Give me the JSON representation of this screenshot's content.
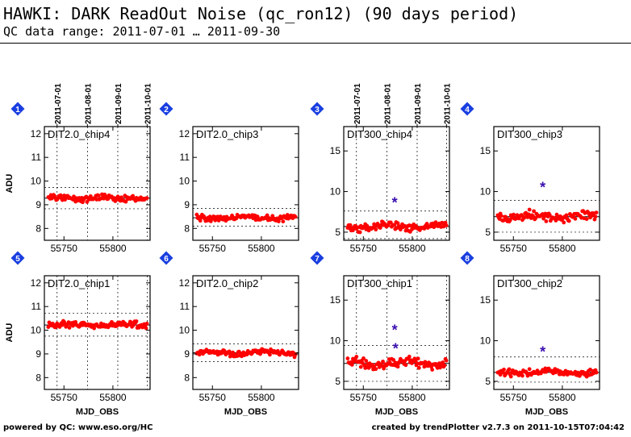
{
  "header": {
    "title": "HAWKI: DARK ReadOut Noise (qc_ron12) (90 days period)",
    "subtitle": "QC data range: 2011-07-01 … 2011-09-30"
  },
  "footer": {
    "left": "powered by QC: www.eso.org/HC",
    "right": "created by trendPlotter v2.7.3 on 2011-10-15T07:04:42"
  },
  "colors": {
    "points": "#ff0000",
    "outliers": "#3a0fb0",
    "badges": "#1a3fe0",
    "grid": "#000000",
    "limit_lines": "#000000"
  },
  "chart_data": [
    {
      "type": "scatter",
      "id": 1,
      "panel_label": "DIT2.0_chip4",
      "ylabel": "ADU",
      "xlabel": "",
      "xlim": [
        55730,
        55838
      ],
      "ylim": [
        7.5,
        12.3
      ],
      "yticks": [
        8,
        9,
        10,
        11,
        12
      ],
      "xticks": [
        55750,
        55800
      ],
      "date_ticks": [
        "2011-07-01",
        "2011-08-01",
        "2011-09-01",
        "2011-10-01"
      ],
      "mean": 9.28,
      "limits": [
        8.83,
        9.73
      ],
      "series": [
        {
          "y_center": 9.28,
          "y_spread": 0.09
        }
      ],
      "outliers": []
    },
    {
      "type": "scatter",
      "id": 2,
      "panel_label": "DIT2.0_chip3",
      "ylabel": "",
      "xlabel": "",
      "xlim": [
        55730,
        55838
      ],
      "ylim": [
        7.5,
        12.3
      ],
      "yticks": [
        8,
        9,
        10,
        11,
        12
      ],
      "xticks": [
        55750,
        55800
      ],
      "date_ticks": [],
      "mean": 8.45,
      "limits": [
        8.1,
        8.85
      ],
      "series": [
        {
          "y_center": 8.45,
          "y_spread": 0.09
        }
      ],
      "outliers": []
    },
    {
      "type": "scatter",
      "id": 3,
      "panel_label": "DIT300_chip4",
      "ylabel": "",
      "xlabel": "",
      "xlim": [
        55730,
        55838
      ],
      "ylim": [
        4,
        18
      ],
      "yticks": [
        5,
        10,
        15
      ],
      "xticks": [
        55750,
        55800
      ],
      "date_ticks": [
        "2011-07-01",
        "2011-08-01",
        "2011-09-01",
        "2011-10-01"
      ],
      "mean": 5.7,
      "limits": [
        4.2,
        7.6
      ],
      "series": [
        {
          "y_center": 5.7,
          "y_spread": 0.35
        }
      ],
      "outliers": [
        {
          "x": 55782,
          "y": 8.8
        }
      ]
    },
    {
      "type": "scatter",
      "id": 4,
      "panel_label": "DIT300_chip3",
      "ylabel": "",
      "xlabel": "",
      "xlim": [
        55730,
        55838
      ],
      "ylim": [
        4,
        18
      ],
      "yticks": [
        5,
        10,
        15
      ],
      "xticks": [
        55750,
        55800
      ],
      "date_ticks": [],
      "mean": 6.9,
      "limits": [
        5.0,
        8.9
      ],
      "series": [
        {
          "y_center": 6.9,
          "y_spread": 0.45
        }
      ],
      "outliers": [
        {
          "x": 55780,
          "y": 10.7
        }
      ]
    },
    {
      "type": "scatter",
      "id": 5,
      "panel_label": "DIT2.0_chip1",
      "ylabel": "ADU",
      "xlabel": "MJD_OBS",
      "xlim": [
        55730,
        55838
      ],
      "ylim": [
        7.5,
        12.3
      ],
      "yticks": [
        8,
        9,
        10,
        11,
        12
      ],
      "xticks": [
        55750,
        55800
      ],
      "date_ticks": [],
      "mean": 10.22,
      "limits": [
        9.75,
        10.72
      ],
      "series": [
        {
          "y_center": 10.22,
          "y_spread": 0.1
        }
      ],
      "outliers": []
    },
    {
      "type": "scatter",
      "id": 6,
      "panel_label": "DIT2.0_chip2",
      "ylabel": "",
      "xlabel": "MJD_OBS",
      "xlim": [
        55730,
        55838
      ],
      "ylim": [
        7.5,
        12.3
      ],
      "yticks": [
        8,
        9,
        10,
        11,
        12
      ],
      "xticks": [
        55750,
        55800
      ],
      "date_ticks": [],
      "mean": 9.05,
      "limits": [
        8.68,
        9.42
      ],
      "series": [
        {
          "y_center": 9.05,
          "y_spread": 0.08
        }
      ],
      "outliers": []
    },
    {
      "type": "scatter",
      "id": 7,
      "panel_label": "DIT300_chip1",
      "ylabel": "",
      "xlabel": "MJD_OBS",
      "xlim": [
        55730,
        55838
      ],
      "ylim": [
        4,
        18
      ],
      "yticks": [
        5,
        10,
        15
      ],
      "xticks": [
        55750,
        55800
      ],
      "date_ticks": [],
      "mean": 7.2,
      "limits": [
        5.0,
        9.4
      ],
      "series": [
        {
          "y_center": 7.2,
          "y_spread": 0.45
        }
      ],
      "outliers": [
        {
          "x": 55782,
          "y": 11.5
        },
        {
          "x": 55783,
          "y": 9.2
        }
      ]
    },
    {
      "type": "scatter",
      "id": 8,
      "panel_label": "DIT300_chip2",
      "ylabel": "",
      "xlabel": "MJD_OBS",
      "xlim": [
        55730,
        55838
      ],
      "ylim": [
        4,
        18
      ],
      "yticks": [
        5,
        10,
        15
      ],
      "xticks": [
        55750,
        55800
      ],
      "date_ticks": [],
      "mean": 6.1,
      "limits": [
        4.9,
        8.0
      ],
      "series": [
        {
          "y_center": 6.1,
          "y_spread": 0.3
        }
      ],
      "outliers": [
        {
          "x": 55780,
          "y": 8.8
        }
      ]
    }
  ]
}
